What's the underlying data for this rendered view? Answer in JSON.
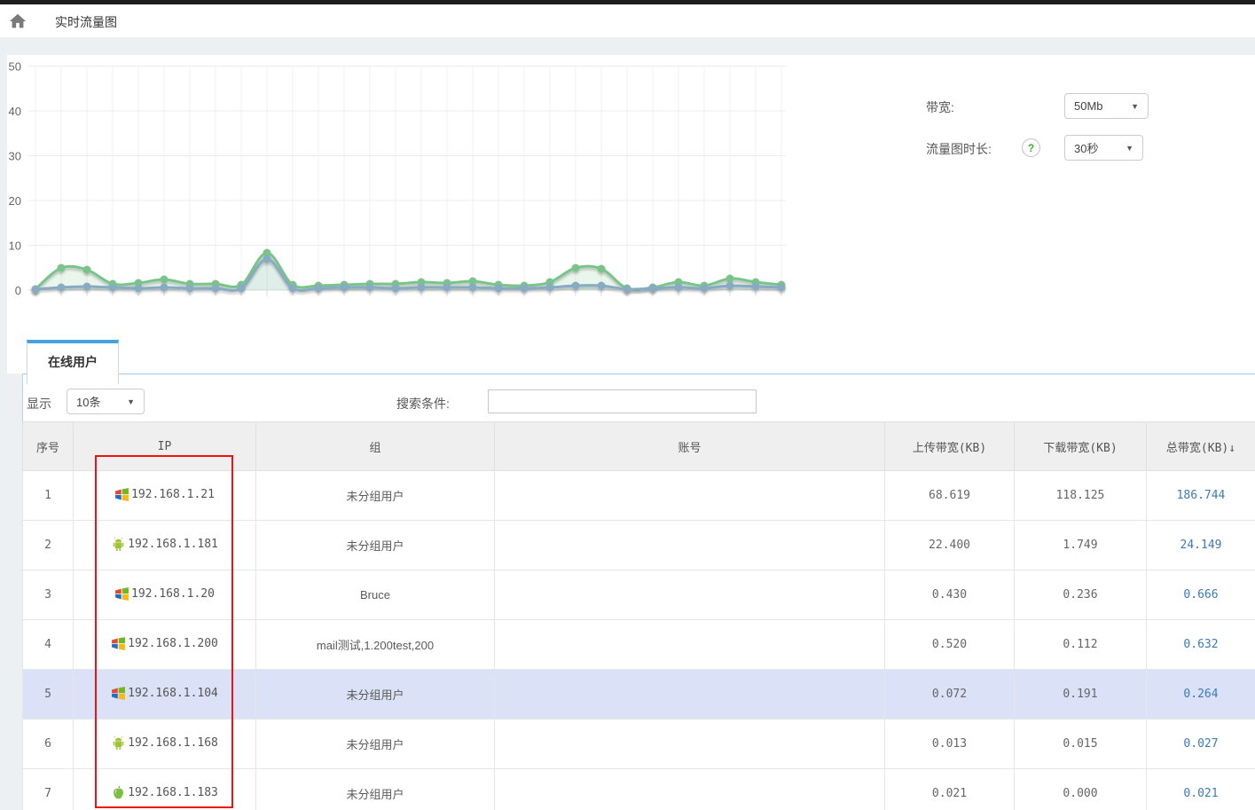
{
  "topbar": {
    "title": "实时流量图"
  },
  "controls": {
    "bandwidth_label": "带宽:",
    "bandwidth_value": "50Mb",
    "duration_label": "流量图时长:",
    "duration_value": "30秒",
    "help_glyph": "?",
    "caret": "▼"
  },
  "tab": {
    "label": "在线用户"
  },
  "toolbar": {
    "show_label": "显示",
    "page_size_value": "10条",
    "search_label": "搜索条件:",
    "search_value": ""
  },
  "table": {
    "headers": [
      "序号",
      "IP",
      "组",
      "账号",
      "上传带宽(KB)",
      "下载带宽(KB)",
      "总带宽(KB)"
    ],
    "sort_arrow": "↓",
    "rows": [
      {
        "index": "1",
        "os": "windows",
        "ip": "192.168.1.21",
        "group": "未分组用户",
        "account": "",
        "upload": "68.619",
        "download": "118.125",
        "total": "186.744",
        "highlighted": false
      },
      {
        "index": "2",
        "os": "android",
        "ip": "192.168.1.181",
        "group": "未分组用户",
        "account": "",
        "upload": "22.400",
        "download": "1.749",
        "total": "24.149",
        "highlighted": false
      },
      {
        "index": "3",
        "os": "windows",
        "ip": "192.168.1.20",
        "group": "Bruce",
        "account": "",
        "upload": "0.430",
        "download": "0.236",
        "total": "0.666",
        "highlighted": false
      },
      {
        "index": "4",
        "os": "windows",
        "ip": "192.168.1.200",
        "group": "mail测试,1.200test,200",
        "account": "",
        "upload": "0.520",
        "download": "0.112",
        "total": "0.632",
        "highlighted": false
      },
      {
        "index": "5",
        "os": "windows",
        "ip": "192.168.1.104",
        "group": "未分组用户",
        "account": "",
        "upload": "0.072",
        "download": "0.191",
        "total": "0.264",
        "highlighted": true
      },
      {
        "index": "6",
        "os": "android",
        "ip": "192.168.1.168",
        "group": "未分组用户",
        "account": "",
        "upload": "0.013",
        "download": "0.015",
        "total": "0.027",
        "highlighted": false
      },
      {
        "index": "7",
        "os": "apple",
        "ip": "192.168.1.183",
        "group": "未分组用户",
        "account": "",
        "upload": "0.021",
        "download": "0.000",
        "total": "0.021",
        "highlighted": false
      }
    ]
  },
  "chart_data": {
    "type": "line",
    "title": "",
    "xlabel": "",
    "ylabel": "",
    "ylim": [
      0,
      50
    ],
    "yticks": [
      0,
      10,
      20,
      30,
      40,
      50
    ],
    "grid": true,
    "legend": "none",
    "series": [
      {
        "name": "total-traffic-green",
        "color": "#79c489",
        "fill": "rgba(121,196,137,0.16)",
        "values": [
          0.2,
          5.0,
          4.6,
          1.4,
          1.5,
          2.3,
          1.4,
          1.3,
          1.2,
          8.3,
          1.2,
          0.9,
          1.1,
          1.3,
          1.3,
          1.7,
          1.6,
          2.0,
          1.2,
          1.0,
          1.8,
          4.9,
          4.8,
          0.4,
          0.5,
          1.7,
          0.9,
          2.6,
          1.8,
          1.2
        ]
      },
      {
        "name": "secondary-traffic-blue",
        "color": "#87abc2",
        "fill": "rgba(135,171,194,0.10)",
        "values": [
          0.1,
          0.6,
          0.7,
          0.5,
          0.4,
          0.5,
          0.4,
          0.4,
          0.4,
          6.9,
          0.4,
          0.3,
          0.5,
          0.6,
          0.4,
          0.5,
          0.5,
          0.6,
          0.4,
          0.3,
          0.6,
          0.9,
          1.0,
          0.2,
          0.3,
          0.6,
          0.4,
          1.0,
          0.8,
          0.5
        ]
      }
    ]
  },
  "annotation": {
    "name": "red-highlight-rectangle",
    "color": "#ee1313"
  },
  "colors": {
    "accent_blue": "#46a3de",
    "link_blue": "#3c7ab8",
    "highlight_row": "#dbe1f6",
    "green_series": "#79c489",
    "blue_series": "#87abc2"
  }
}
